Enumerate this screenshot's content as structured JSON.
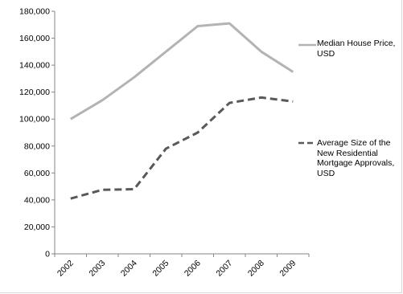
{
  "chart_data": {
    "type": "line",
    "categories": [
      "2002",
      "2003",
      "2004",
      "2005",
      "2006",
      "2007",
      "2008",
      "2009"
    ],
    "ylim": [
      0,
      180000
    ],
    "yticks": [
      0,
      20000,
      40000,
      60000,
      80000,
      100000,
      120000,
      140000,
      160000,
      180000
    ],
    "ytick_labels": [
      "0",
      "20,000",
      "40,000",
      "60,000",
      "80,000",
      "100,000",
      "120,000",
      "140,000",
      "160,000",
      "180,000"
    ],
    "grid": false,
    "legend_position": "right",
    "series": [
      {
        "name": "Median House Price, USD",
        "values": [
          100000,
          114000,
          131000,
          150000,
          169000,
          171000,
          150000,
          135000
        ],
        "color": "#b3b3b3",
        "style": "solid"
      },
      {
        "name": "Average Size of the New Residential Mortgage Approvals, USD",
        "values": [
          41000,
          47500,
          48000,
          78000,
          90000,
          112000,
          116000,
          113000
        ],
        "color": "#595959",
        "style": "dashed"
      }
    ]
  },
  "legend": {
    "series0_lines": [
      "Median House Price,",
      "USD"
    ],
    "series1_lines": [
      "Average Size of the",
      "New Residential",
      "Mortgage Approvals,",
      "USD"
    ]
  }
}
